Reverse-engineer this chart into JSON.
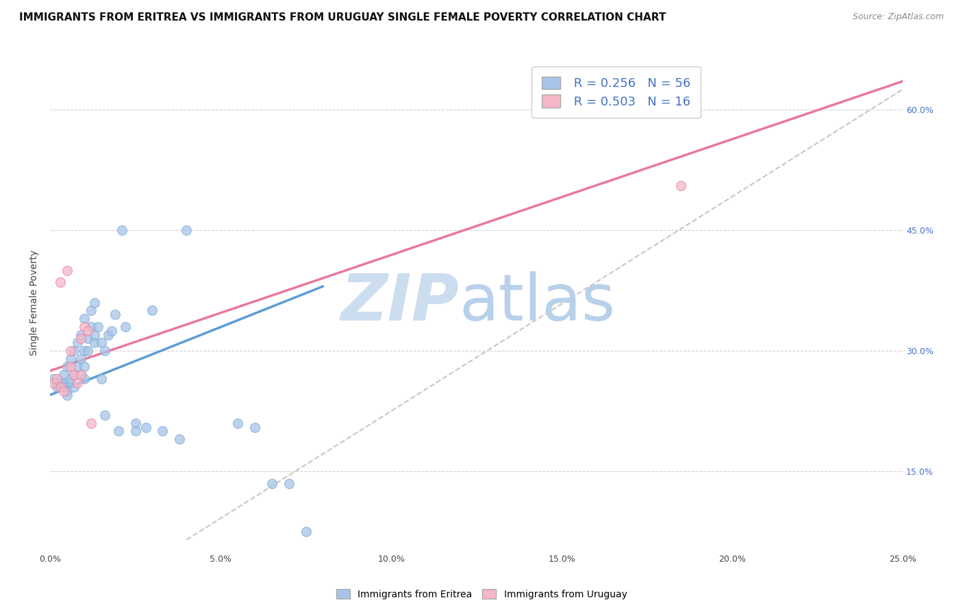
{
  "title": "IMMIGRANTS FROM ERITREA VS IMMIGRANTS FROM URUGUAY SINGLE FEMALE POVERTY CORRELATION CHART",
  "source": "Source: ZipAtlas.com",
  "ylabel": "Single Female Poverty",
  "legend_eritrea_R": "0.256",
  "legend_eritrea_N": "56",
  "legend_uruguay_R": "0.503",
  "legend_uruguay_N": "16",
  "x_tick_labels": [
    "0.0%",
    "5.0%",
    "10.0%",
    "15.0%",
    "20.0%",
    "25.0%"
  ],
  "x_tick_values": [
    0.0,
    0.05,
    0.1,
    0.15,
    0.2,
    0.25
  ],
  "y_tick_labels_right": [
    "15.0%",
    "30.0%",
    "45.0%",
    "60.0%"
  ],
  "y_tick_values_right": [
    0.15,
    0.3,
    0.45,
    0.6
  ],
  "xlim": [
    0.0,
    0.25
  ],
  "ylim": [
    0.05,
    0.67
  ],
  "color_eritrea": "#a8c4e8",
  "color_eritrea_edge": "#7aaad4",
  "color_eritrea_line": "#5b9bd5",
  "color_uruguay": "#f5b8c8",
  "color_uruguay_edge": "#e8809c",
  "color_uruguay_line": "#e8799a",
  "color_diagonal": "#b8b8b8",
  "background_color": "#ffffff",
  "grid_color": "#cccccc",
  "eritrea_x": [
    0.001,
    0.002,
    0.002,
    0.003,
    0.003,
    0.004,
    0.004,
    0.004,
    0.005,
    0.005,
    0.005,
    0.006,
    0.006,
    0.006,
    0.007,
    0.007,
    0.007,
    0.008,
    0.008,
    0.009,
    0.009,
    0.009,
    0.01,
    0.01,
    0.01,
    0.01,
    0.011,
    0.011,
    0.012,
    0.012,
    0.013,
    0.013,
    0.013,
    0.014,
    0.015,
    0.015,
    0.016,
    0.016,
    0.017,
    0.018,
    0.019,
    0.02,
    0.021,
    0.022,
    0.025,
    0.025,
    0.028,
    0.03,
    0.033,
    0.038,
    0.04,
    0.055,
    0.06,
    0.065,
    0.07,
    0.075
  ],
  "eritrea_y": [
    0.265,
    0.26,
    0.255,
    0.255,
    0.26,
    0.26,
    0.255,
    0.27,
    0.25,
    0.245,
    0.28,
    0.26,
    0.29,
    0.265,
    0.27,
    0.3,
    0.255,
    0.28,
    0.31,
    0.27,
    0.29,
    0.32,
    0.28,
    0.3,
    0.34,
    0.265,
    0.3,
    0.315,
    0.33,
    0.35,
    0.31,
    0.32,
    0.36,
    0.33,
    0.31,
    0.265,
    0.3,
    0.22,
    0.32,
    0.325,
    0.345,
    0.2,
    0.45,
    0.33,
    0.21,
    0.2,
    0.205,
    0.35,
    0.2,
    0.19,
    0.45,
    0.21,
    0.205,
    0.135,
    0.135,
    0.075
  ],
  "uruguay_x": [
    0.001,
    0.002,
    0.003,
    0.003,
    0.004,
    0.005,
    0.006,
    0.006,
    0.007,
    0.008,
    0.009,
    0.009,
    0.01,
    0.011,
    0.012,
    0.185
  ],
  "uruguay_y": [
    0.26,
    0.265,
    0.255,
    0.385,
    0.25,
    0.4,
    0.28,
    0.3,
    0.27,
    0.26,
    0.315,
    0.27,
    0.33,
    0.325,
    0.21,
    0.505
  ],
  "eritrea_line_x0": 0.0,
  "eritrea_line_y0": 0.245,
  "eritrea_line_x1": 0.08,
  "eritrea_line_y1": 0.38,
  "uruguay_line_x0": 0.0,
  "uruguay_line_y0": 0.275,
  "uruguay_line_x1": 0.25,
  "uruguay_line_y1": 0.635,
  "diag_line_x0": 0.04,
  "diag_line_y0": 0.065,
  "diag_line_x1": 0.25,
  "diag_line_y1": 0.625,
  "title_fontsize": 11,
  "axis_label_fontsize": 10,
  "tick_fontsize": 9,
  "legend_fontsize": 13,
  "source_fontsize": 9,
  "bottom_legend_labels": [
    "Immigrants from Eritrea",
    "Immigrants from Uruguay"
  ]
}
